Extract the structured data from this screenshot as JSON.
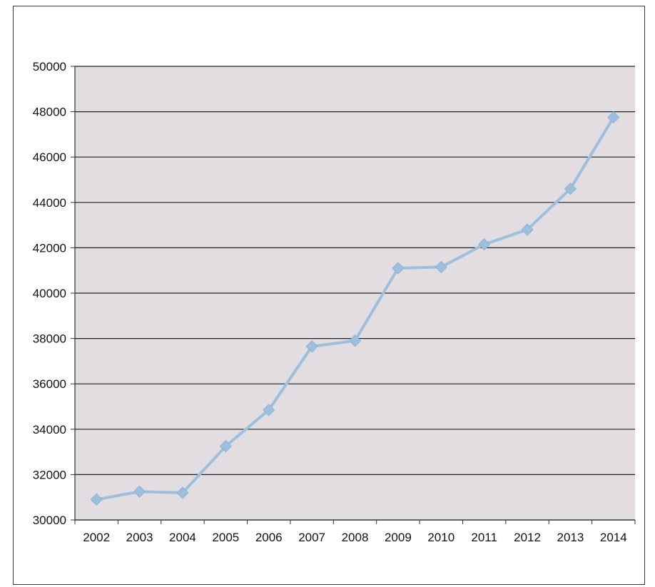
{
  "chart_data": {
    "type": "line",
    "title": "",
    "xlabel": "",
    "ylabel": "",
    "categories": [
      "2002",
      "2003",
      "2004",
      "2005",
      "2006",
      "2007",
      "2008",
      "2009",
      "2010",
      "2011",
      "2012",
      "2013",
      "2014"
    ],
    "series": [
      {
        "values": [
          30900,
          31250,
          31200,
          33250,
          34850,
          37650,
          37900,
          41100,
          41150,
          42150,
          42800,
          44600,
          47750
        ],
        "color": "#9dbfdc",
        "marker": "diamond"
      }
    ],
    "ylim": [
      30000,
      50000
    ],
    "yticks": [
      30000,
      32000,
      34000,
      36000,
      38000,
      40000,
      42000,
      44000,
      46000,
      48000,
      50000
    ],
    "ytick_labels": [
      "30000",
      "32000",
      "34000",
      "36000",
      "38000",
      "40000",
      "42000",
      "44000",
      "46000",
      "48000",
      "50000"
    ],
    "grid": true,
    "legend": "none",
    "colors": {
      "gridline": "#222222",
      "plot_area": "#e2dde0",
      "axis": "#333333"
    }
  }
}
